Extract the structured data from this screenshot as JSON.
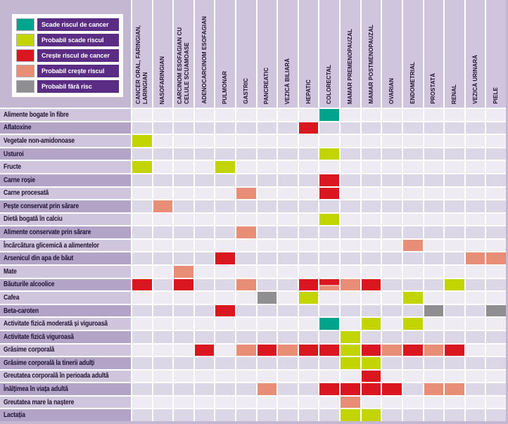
{
  "colors": {
    "D": "#00a38b",
    "PD": "#c2d500",
    "I": "#da1720",
    "PI": "#e88e76",
    "NR": "#8f8f91",
    "legend_panel": "#ffffff",
    "legend_label_bg": "#5b2c84",
    "page_bg": "#c3b7d1",
    "header_bg": "#cfc6dd",
    "row_label_light": "#cfc6dd",
    "row_label_dark": "#b3a3c6",
    "cell_light": "#eeebf3",
    "cell_dark": "#dcd7e7",
    "text_dark": "#1f1233",
    "grid_line": "#ffffff"
  },
  "legend": {
    "items": [
      {
        "code": "D",
        "label": "Scade riscul de cancer"
      },
      {
        "code": "PD",
        "label": "Probabil scade riscul"
      },
      {
        "code": "I",
        "label": "Crește riscul de cancer"
      },
      {
        "code": "PI",
        "label": "Probabil crește riscul"
      },
      {
        "code": "NR",
        "label": "Probabil fără risc"
      }
    ]
  },
  "chart_data": {
    "type": "heatmap",
    "value_codes": {
      "D": "Scade riscul de cancer",
      "PD": "Probabil scade riscul",
      "I": "Crește riscul de cancer",
      "PI": "Probabil crește riscul",
      "NR": "Probabil fără risc",
      "I+PI": "Crește riscul de cancer / Probabil crește riscul (celulă divizată)"
    },
    "columns": [
      "CANCER ORAL, FARINGIAN, LARINGIAN",
      "NASOFARINGIAN",
      "CARCINOM ESOFAGIAN CU CELULE SCUAMOASE",
      "ADENOCARCINOM ESOFAGIAN",
      "PULMONAR",
      "GASTRIC",
      "PANCREATIC",
      "VEZICĂ BILIARĂ",
      "HEPATIC",
      "COLORECTAL",
      "MAMAR PREMENOPAUZAL",
      "MAMAR POSTMENOPAUZAL",
      "OVARIAN",
      "ENDOMETRIAL",
      "PROSTATĂ",
      "RENAL",
      "VEZICĂ URINARĂ",
      "PIELE"
    ],
    "rows": [
      {
        "label": "Alimente bogate în fibre",
        "cells": {
          "10": "D"
        }
      },
      {
        "label": "Aflatoxine",
        "cells": {
          "9": "I"
        }
      },
      {
        "label": "Vegetale non-amidonoase",
        "cells": {
          "1": "PD"
        }
      },
      {
        "label": "Usturoi",
        "cells": {
          "10": "PD"
        }
      },
      {
        "label": "Fructe",
        "cells": {
          "1": "PD",
          "5": "PD"
        }
      },
      {
        "label": "Carne roșie",
        "cells": {
          "10": "I"
        }
      },
      {
        "label": "Carne procesată",
        "cells": {
          "6": "PI",
          "10": "I"
        }
      },
      {
        "label": "Pește conservat prin sărare",
        "cells": {
          "2": "PI"
        }
      },
      {
        "label": "Dietă bogată în calciu",
        "cells": {
          "10": "PD"
        }
      },
      {
        "label": "Alimente conservate prin sărare",
        "cells": {
          "6": "PI"
        }
      },
      {
        "label": "Încărcătura glicemică a alimentelor",
        "cells": {
          "14": "PI"
        }
      },
      {
        "label": "Arsenicul din apa de băut",
        "cells": {
          "5": "I",
          "17": "PI",
          "18": "PI"
        }
      },
      {
        "label": "Mate",
        "cells": {
          "3": "PI"
        }
      },
      {
        "label": "Băuturile alcoolice",
        "cells": {
          "1": "I",
          "3": "I",
          "6": "PI",
          "9": "I",
          "10": "I+PI",
          "11": "PI",
          "12": "I",
          "16": "PD"
        }
      },
      {
        "label": "Cafea",
        "cells": {
          "7": "NR",
          "9": "PD",
          "14": "PD"
        }
      },
      {
        "label": "Beta-caroten",
        "cells": {
          "5": "I",
          "15": "NR",
          "18": "NR"
        }
      },
      {
        "label": "Activitate fizică moderată și viguroasă",
        "cells": {
          "10": "D",
          "12": "PD",
          "14": "PD"
        }
      },
      {
        "label": "Activitate fizică viguroasă",
        "cells": {
          "11": "PD"
        }
      },
      {
        "label": "Grăsime corporală",
        "cells": {
          "4": "I",
          "6": "PI",
          "7": "I",
          "8": "PI",
          "9": "I",
          "10": "I",
          "11": "PD",
          "12": "I",
          "13": "PI",
          "14": "I",
          "15": "PI",
          "16": "I"
        }
      },
      {
        "label": "Grăsime corporală la tinerii adulți",
        "cells": {
          "11": "PD",
          "12": "PD"
        }
      },
      {
        "label": "Greutatea corporală în perioada adultă",
        "cells": {
          "12": "I"
        }
      },
      {
        "label": "Înălțimea în viața adultă",
        "cells": {
          "7": "PI",
          "10": "I",
          "11": "I",
          "12": "I",
          "13": "I",
          "15": "PI",
          "16": "PI"
        }
      },
      {
        "label": "Greutatea mare la naștere",
        "cells": {
          "11": "PI"
        }
      },
      {
        "label": "Lactația",
        "cells": {
          "11": "PD",
          "12": "PD"
        }
      }
    ]
  }
}
